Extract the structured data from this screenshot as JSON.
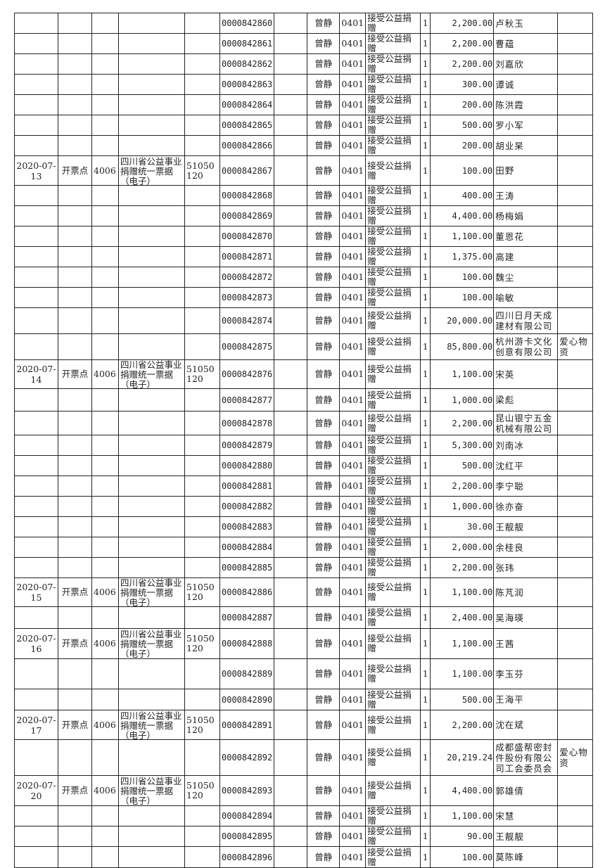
{
  "bill_name": "四川省公益事业捐赠统一票据（电子）",
  "rows": [
    {
      "no": "0000842860",
      "handler": "曾静",
      "dept": "0401",
      "item": "接受公益捐赠",
      "qty": "1",
      "amount": "2,200.00",
      "donor": "卢秋玉",
      "note": ""
    },
    {
      "no": "0000842861",
      "handler": "曾静",
      "dept": "0401",
      "item": "接受公益捐赠",
      "qty": "1",
      "amount": "2,200.00",
      "donor": "曹蕴",
      "note": ""
    },
    {
      "no": "0000842862",
      "handler": "曾静",
      "dept": "0401",
      "item": "接受公益捐赠",
      "qty": "1",
      "amount": "2,200.00",
      "donor": "刘嘉欣",
      "note": ""
    },
    {
      "no": "0000842863",
      "handler": "曾静",
      "dept": "0401",
      "item": "接受公益捐赠",
      "qty": "1",
      "amount": "300.00",
      "donor": "谭诚",
      "note": ""
    },
    {
      "no": "0000842864",
      "handler": "曾静",
      "dept": "0401",
      "item": "接受公益捐赠",
      "qty": "1",
      "amount": "200.00",
      "donor": "陈洪霞",
      "note": ""
    },
    {
      "no": "0000842865",
      "handler": "曾静",
      "dept": "0401",
      "item": "接受公益捐赠",
      "qty": "1",
      "amount": "500.00",
      "donor": "罗小军",
      "note": ""
    },
    {
      "no": "0000842866",
      "handler": "曾静",
      "dept": "0401",
      "item": "接受公益捐赠",
      "qty": "1",
      "amount": "200.00",
      "donor": "胡业杲",
      "note": ""
    },
    {
      "date": "2020-07-13",
      "point": "开票点",
      "pcode": "4006",
      "bill": "四川省公益事业捐赠统一票据（电子）",
      "bcode": "51050120",
      "no": "0000842867",
      "handler": "曾静",
      "dept": "0401",
      "item": "接受公益捐赠",
      "qty": "1",
      "amount": "100.00",
      "donor": "田野",
      "note": ""
    },
    {
      "no": "0000842868",
      "handler": "曾静",
      "dept": "0401",
      "item": "接受公益捐赠",
      "qty": "1",
      "amount": "400.00",
      "donor": "王涛",
      "note": ""
    },
    {
      "no": "0000842869",
      "handler": "曾静",
      "dept": "0401",
      "item": "接受公益捐赠",
      "qty": "1",
      "amount": "4,400.00",
      "donor": "杨梅娟",
      "note": ""
    },
    {
      "no": "0000842870",
      "handler": "曾静",
      "dept": "0401",
      "item": "接受公益捐赠",
      "qty": "1",
      "amount": "1,100.00",
      "donor": "董恩花",
      "note": ""
    },
    {
      "no": "0000842871",
      "handler": "曾静",
      "dept": "0401",
      "item": "接受公益捐赠",
      "qty": "1",
      "amount": "1,375.00",
      "donor": "高建",
      "note": ""
    },
    {
      "no": "0000842872",
      "handler": "曾静",
      "dept": "0401",
      "item": "接受公益捐赠",
      "qty": "1",
      "amount": "100.00",
      "donor": "魏尘",
      "note": ""
    },
    {
      "no": "0000842873",
      "handler": "曾静",
      "dept": "0401",
      "item": "接受公益捐赠",
      "qty": "1",
      "amount": "100.00",
      "donor": "喻敏",
      "note": ""
    },
    {
      "no": "0000842874",
      "handler": "曾静",
      "dept": "0401",
      "item": "接受公益捐赠",
      "qty": "1",
      "amount": "20,000.00",
      "donor": "四川日月天成建材有限公司",
      "note": ""
    },
    {
      "no": "0000842875",
      "handler": "曾静",
      "dept": "0401",
      "item": "接受公益捐赠",
      "qty": "1",
      "amount": "85,800.00",
      "donor": "杭州游卡文化创意有限公司",
      "note": "爱心物资"
    },
    {
      "date": "2020-07-14",
      "point": "开票点",
      "pcode": "4006",
      "bill": "四川省公益事业捐赠统一票据（电子）",
      "bcode": "51050120",
      "no": "0000842876",
      "handler": "曾静",
      "dept": "0401",
      "item": "接受公益捐赠",
      "qty": "1",
      "amount": "1,100.00",
      "donor": "宋英",
      "note": ""
    },
    {
      "no": "0000842877",
      "handler": "曾静",
      "dept": "0401",
      "item": "接受公益捐赠",
      "qty": "1",
      "amount": "1,000.00",
      "donor": "梁彪",
      "note": ""
    },
    {
      "no": "0000842878",
      "handler": "曾静",
      "dept": "0401",
      "item": "接受公益捐赠",
      "qty": "1",
      "amount": "2,200.00",
      "donor": "昆山银宁五金机械有限公司",
      "note": ""
    },
    {
      "no": "0000842879",
      "handler": "曾静",
      "dept": "0401",
      "item": "接受公益捐赠",
      "qty": "1",
      "amount": "5,300.00",
      "donor": "刘南冰",
      "note": ""
    },
    {
      "no": "0000842880",
      "handler": "曾静",
      "dept": "0401",
      "item": "接受公益捐赠",
      "qty": "1",
      "amount": "500.00",
      "donor": "沈红平",
      "note": ""
    },
    {
      "no": "0000842881",
      "handler": "曾静",
      "dept": "0401",
      "item": "接受公益捐赠",
      "qty": "1",
      "amount": "2,200.00",
      "donor": "李宁聪",
      "note": ""
    },
    {
      "no": "0000842882",
      "handler": "曾静",
      "dept": "0401",
      "item": "接受公益捐赠",
      "qty": "1",
      "amount": "1,000.00",
      "donor": "徐亦奋",
      "note": ""
    },
    {
      "no": "0000842883",
      "handler": "曾静",
      "dept": "0401",
      "item": "接受公益捐赠",
      "qty": "1",
      "amount": "30.00",
      "donor": "王靓靓",
      "note": ""
    },
    {
      "no": "0000842884",
      "handler": "曾静",
      "dept": "0401",
      "item": "接受公益捐赠",
      "qty": "1",
      "amount": "2,000.00",
      "donor": "余桂良",
      "note": ""
    },
    {
      "no": "0000842885",
      "handler": "曾静",
      "dept": "0401",
      "item": "接受公益捐赠",
      "qty": "1",
      "amount": "2,200.00",
      "donor": "张玮",
      "note": ""
    },
    {
      "date": "2020-07-15",
      "point": "开票点",
      "pcode": "4006",
      "bill": "四川省公益事业捐赠统一票据（电子）",
      "bcode": "51050120",
      "no": "0000842886",
      "handler": "曾静",
      "dept": "0401",
      "item": "接受公益捐赠",
      "qty": "1",
      "amount": "1,100.00",
      "donor": "陈芃润",
      "note": ""
    },
    {
      "no": "0000842887",
      "handler": "曾静",
      "dept": "0401",
      "item": "接受公益捐赠",
      "qty": "1",
      "amount": "2,400.00",
      "donor": "吴海瑛",
      "note": ""
    },
    {
      "date": "2020-07-16",
      "point": "开票点",
      "pcode": "4006",
      "bill": "四川省公益事业捐赠统一票据（电子）",
      "bcode": "51050120",
      "no": "0000842888",
      "handler": "曾静",
      "dept": "0401",
      "item": "接受公益捐赠",
      "qty": "1",
      "amount": "1,100.00",
      "donor": "王茜",
      "note": ""
    },
    {
      "no": "0000842889",
      "handler": "曾静",
      "dept": "0401",
      "item": "接受公益捐赠",
      "qty": "1",
      "amount": "1,100.00",
      "donor": "李玉芬",
      "note": ""
    },
    {
      "no": "0000842890",
      "handler": "曾静",
      "dept": "0401",
      "item": "接受公益捐赠",
      "qty": "1",
      "amount": "500.00",
      "donor": "王海平",
      "note": ""
    },
    {
      "date": "2020-07-17",
      "point": "开票点",
      "pcode": "4006",
      "bill": "四川省公益事业捐赠统一票据（电子）",
      "bcode": "51050120",
      "no": "0000842891",
      "handler": "曾静",
      "dept": "0401",
      "item": "接受公益捐赠",
      "qty": "1",
      "amount": "2,200.00",
      "donor": "沈在斌",
      "note": ""
    },
    {
      "no": "0000842892",
      "handler": "曾静",
      "dept": "0401",
      "item": "接受公益捐赠",
      "qty": "1",
      "amount": "20,219.24",
      "donor": "成都盛帮密封件股份有限公司工会委员会",
      "note": "爱心物资"
    },
    {
      "date": "2020-07-20",
      "point": "开票点",
      "pcode": "4006",
      "bill": "四川省公益事业捐赠统一票据（电子）",
      "bcode": "51050120",
      "no": "0000842893",
      "handler": "曾静",
      "dept": "0401",
      "item": "接受公益捐赠",
      "qty": "1",
      "amount": "4,400.00",
      "donor": "郭雄倩",
      "note": ""
    },
    {
      "no": "0000842894",
      "handler": "曾静",
      "dept": "0401",
      "item": "接受公益捐赠",
      "qty": "1",
      "amount": "1,100.00",
      "donor": "宋慧",
      "note": ""
    },
    {
      "no": "0000842895",
      "handler": "曾静",
      "dept": "0401",
      "item": "接受公益捐赠",
      "qty": "1",
      "amount": "90.00",
      "donor": "王靓靓",
      "note": ""
    },
    {
      "no": "0000842896",
      "handler": "曾静",
      "dept": "0401",
      "item": "接受公益捐赠",
      "qty": "1",
      "amount": "100.00",
      "donor": "莫陈峰",
      "note": ""
    }
  ]
}
